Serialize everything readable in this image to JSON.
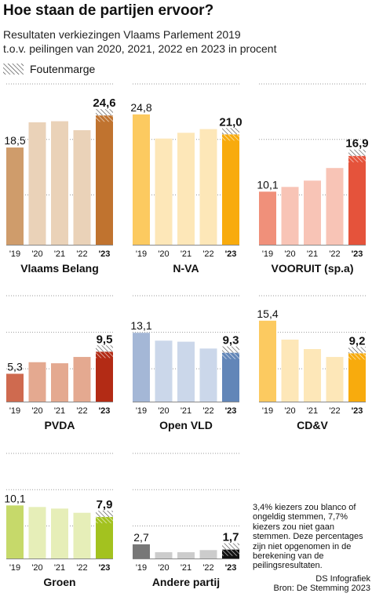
{
  "title": "Hoe staan de partijen ervoor?",
  "subtitle_line1": "Resultaten verkiezingen Vlaams Parlement 2019",
  "subtitle_line2": "t.o.v. peilingen van 2020, 2021, 2022 en 2023 in procent",
  "legend_label": "Foutenmarge",
  "note": "3,4% kiezers zou blanco of ongeldig stemmen, 7,7% kiezers zou niet gaan stemmen. Deze percentages zijn niet opgenomen in de berekening van de peilingsresultaten.",
  "credit_line1": "DS Infografiek",
  "credit_line2": "Bron: De Stemming 2023",
  "chart_data": [
    {
      "type": "bar",
      "title": "Vlaams Belang",
      "categories": [
        "'19",
        "'20",
        "'21",
        "'22",
        "'23"
      ],
      "values": [
        18.5,
        23.3,
        23.5,
        21.8,
        24.6
      ],
      "labels": [
        "18,5",
        "",
        "",
        "",
        "24,6"
      ],
      "colors": [
        "#cf9c6b",
        "#ead2b8",
        "#ead2b8",
        "#ead2b8",
        "#c0732f"
      ],
      "ylim": [
        0,
        30
      ]
    },
    {
      "type": "bar",
      "title": "N-VA",
      "categories": [
        "'19",
        "'20",
        "'21",
        "'22",
        "'23"
      ],
      "values": [
        24.8,
        20.2,
        21.3,
        22.0,
        21.0
      ],
      "labels": [
        "24,8",
        "",
        "",
        "",
        "21,0"
      ],
      "colors": [
        "#fcca60",
        "#fde7b8",
        "#fde7b8",
        "#fde7b8",
        "#f8ab0d"
      ],
      "ylim": [
        0,
        30
      ]
    },
    {
      "type": "bar",
      "title": "VOORUIT (sp.a)",
      "categories": [
        "'19",
        "'20",
        "'21",
        "'22",
        "'23"
      ],
      "values": [
        10.1,
        11.0,
        12.2,
        14.6,
        16.9
      ],
      "labels": [
        "10,1",
        "",
        "",
        "",
        "16,9"
      ],
      "colors": [
        "#f0907a",
        "#f8c4b6",
        "#f8c4b6",
        "#f8c4b6",
        "#e5533b"
      ],
      "ylim": [
        0,
        30
      ]
    },
    {
      "type": "bar",
      "title": "PVDA",
      "categories": [
        "'19",
        "'20",
        "'21",
        "'22",
        "'23"
      ],
      "values": [
        5.3,
        7.5,
        7.3,
        8.5,
        9.5
      ],
      "labels": [
        "5,3",
        "",
        "",
        "",
        "9,5"
      ],
      "colors": [
        "#cf6a4f",
        "#e4a990",
        "#e4a990",
        "#e4a990",
        "#b32b15"
      ],
      "ylim": [
        0,
        30
      ]
    },
    {
      "type": "bar",
      "title": "Open VLD",
      "categories": [
        "'19",
        "'20",
        "'21",
        "'22",
        "'23"
      ],
      "values": [
        13.1,
        11.6,
        11.4,
        10.1,
        9.3
      ],
      "labels": [
        "13,1",
        "",
        "",
        "",
        "9,3"
      ],
      "colors": [
        "#a4b7d6",
        "#cbd7ea",
        "#cbd7ea",
        "#cbd7ea",
        "#6286b8"
      ],
      "ylim": [
        0,
        30
      ]
    },
    {
      "type": "bar",
      "title": "CD&V",
      "categories": [
        "'19",
        "'20",
        "'21",
        "'22",
        "'23"
      ],
      "values": [
        15.4,
        11.8,
        10.0,
        8.5,
        9.2
      ],
      "labels": [
        "15,4",
        "",
        "",
        "",
        "9,2"
      ],
      "colors": [
        "#fcca60",
        "#fde7b8",
        "#fde7b8",
        "#fde7b8",
        "#f8ab0d"
      ],
      "ylim": [
        0,
        30
      ]
    },
    {
      "type": "bar",
      "title": "Groen",
      "categories": [
        "'19",
        "'20",
        "'21",
        "'22",
        "'23"
      ],
      "values": [
        10.1,
        9.8,
        9.5,
        8.7,
        7.9
      ],
      "labels": [
        "10,1",
        "",
        "",
        "",
        "7,9"
      ],
      "colors": [
        "#c6d96a",
        "#e6eeb8",
        "#e6eeb8",
        "#e6eeb8",
        "#a3c21f"
      ],
      "ylim": [
        0,
        30
      ]
    },
    {
      "type": "bar",
      "title": "Andere partij",
      "categories": [
        "'19",
        "'20",
        "'21",
        "'22",
        "'23"
      ],
      "values": [
        2.7,
        1.2,
        1.2,
        1.6,
        1.7
      ],
      "labels": [
        "2,7",
        "",
        "",
        "",
        "1,7"
      ],
      "colors": [
        "#777777",
        "#cccccc",
        "#cccccc",
        "#cccccc",
        "#111111"
      ],
      "ylim": [
        0,
        30
      ]
    }
  ]
}
